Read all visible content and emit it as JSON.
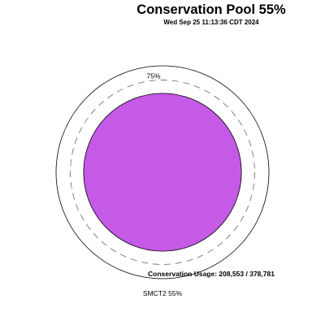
{
  "title": "Conservation Pool 55%",
  "timestamp": "Wed Sep 25 11:13:36 CDT 2024",
  "colors": {
    "fill": "#c55ae6",
    "outline": "#000000",
    "dashed": "#666666"
  },
  "chart_data": {
    "type": "pie",
    "percent_full": 55,
    "reference_ring_percent": 75,
    "reference_ring_label": "75%",
    "usage_label": "Conservation Usage: 208,553 / 378,781",
    "usage_value": 208553,
    "capacity_value": 378781,
    "station_label": "SMCT2 55%"
  }
}
